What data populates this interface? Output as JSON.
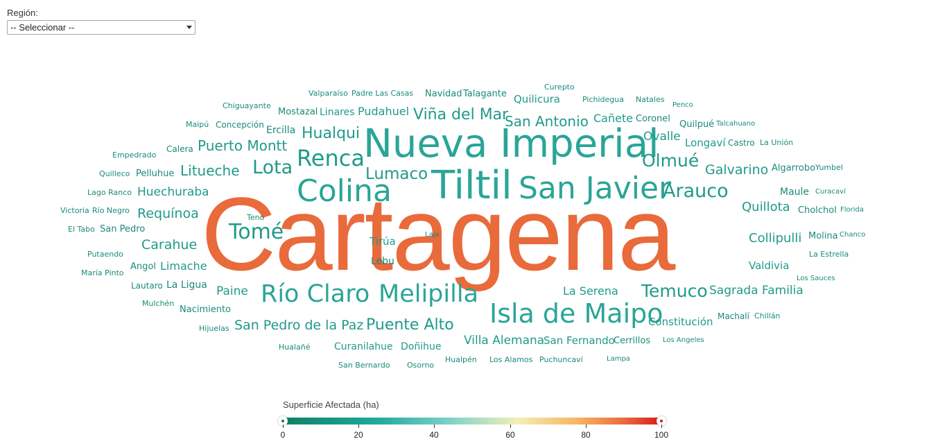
{
  "filter": {
    "label": "Región:",
    "selected": "-- Seleccionar --"
  },
  "legend": {
    "title": "Superficie Afectada (ha)",
    "ticks": [
      "0",
      "20",
      "40",
      "60",
      "80",
      "100"
    ],
    "range": [
      0,
      100
    ],
    "gradient_colors": [
      "#0e8064",
      "#1faa9c",
      "#83d3c9",
      "#f3efb6",
      "#f7b45f",
      "#ec6b3e",
      "#d7191c"
    ]
  },
  "colors": {
    "small_word": "#1a8a79",
    "medium_word": "#1f9a8a",
    "large_word": "#2aa597",
    "highlight_word": "#e96a3b"
  },
  "words": [
    {
      "text": "Cartagena",
      "weight": 100,
      "tier": "highlight"
    },
    {
      "text": "Nueva Imperial",
      "weight": 34,
      "tier": "large"
    },
    {
      "text": "Tiltil",
      "weight": 30,
      "tier": "large"
    },
    {
      "text": "San Javier",
      "weight": 26,
      "tier": "large"
    },
    {
      "text": "Colina",
      "weight": 27,
      "tier": "large"
    },
    {
      "text": "Isla de Maipo",
      "weight": 22,
      "tier": "large"
    },
    {
      "text": "Renca",
      "weight": 18,
      "tier": "medium"
    },
    {
      "text": "Río Claro",
      "weight": 20,
      "tier": "large"
    },
    {
      "text": "Melipilla",
      "weight": 20,
      "tier": "large"
    },
    {
      "text": "Tomé",
      "weight": 17,
      "tier": "medium"
    },
    {
      "text": "Lota",
      "weight": 15,
      "tier": "medium"
    },
    {
      "text": "Arauco",
      "weight": 15,
      "tier": "medium"
    },
    {
      "text": "Olmué",
      "weight": 14,
      "tier": "medium"
    },
    {
      "text": "Temuco",
      "weight": 14,
      "tier": "medium"
    },
    {
      "text": "Lumaco",
      "weight": 13,
      "tier": "medium"
    },
    {
      "text": "Hualqui",
      "weight": 12,
      "tier": "medium"
    },
    {
      "text": "Viña del Mar",
      "weight": 12,
      "tier": "medium"
    },
    {
      "text": "Puente Alto",
      "weight": 13,
      "tier": "medium"
    },
    {
      "text": "San Antonio",
      "weight": 11,
      "tier": "medium"
    },
    {
      "text": "Puerto Montt",
      "weight": 11,
      "tier": "medium"
    },
    {
      "text": "Litueche",
      "weight": 11,
      "tier": "medium"
    },
    {
      "text": "Galvarino",
      "weight": 10,
      "tier": "medium"
    },
    {
      "text": "San Pedro de la Paz",
      "weight": 11,
      "tier": "medium"
    },
    {
      "text": "Requínoa",
      "weight": 10,
      "tier": "medium"
    },
    {
      "text": "Carahue",
      "weight": 10,
      "tier": "medium"
    },
    {
      "text": "Quillota",
      "weight": 10,
      "tier": "medium"
    },
    {
      "text": "Collipulli",
      "weight": 10,
      "tier": "medium"
    },
    {
      "text": "Sagrada Familia",
      "weight": 9,
      "tier": "medium"
    },
    {
      "text": "Ovalle",
      "weight": 9,
      "tier": "medium"
    },
    {
      "text": "Huechuraba",
      "weight": 9,
      "tier": "medium"
    },
    {
      "text": "Villa Alemana",
      "weight": 9,
      "tier": "medium"
    },
    {
      "text": "Paine",
      "weight": 9,
      "tier": "medium"
    },
    {
      "text": "La Serena",
      "weight": 8,
      "tier": "medium"
    },
    {
      "text": "Constitución",
      "weight": 8,
      "tier": "medium"
    },
    {
      "text": "Valdivia",
      "weight": 8,
      "tier": "medium"
    },
    {
      "text": "Limache",
      "weight": 8,
      "tier": "medium"
    },
    {
      "text": "Pudahuel",
      "weight": 8,
      "tier": "medium"
    },
    {
      "text": "Quilicura",
      "weight": 8,
      "tier": "medium"
    },
    {
      "text": "Cañete",
      "weight": 8,
      "tier": "medium"
    },
    {
      "text": "Longaví",
      "weight": 8,
      "tier": "medium"
    },
    {
      "text": "San Fernando",
      "weight": 8,
      "tier": "medium"
    },
    {
      "text": "Tirúa",
      "weight": 8,
      "tier": "medium"
    },
    {
      "text": "Curanilahue",
      "weight": 7,
      "tier": "medium"
    },
    {
      "text": "Doñihue",
      "weight": 7,
      "tier": "medium"
    },
    {
      "text": "Linares",
      "weight": 7,
      "tier": "medium"
    },
    {
      "text": "Maule",
      "weight": 7,
      "tier": "small"
    },
    {
      "text": "La Ligua",
      "weight": 7,
      "tier": "small"
    },
    {
      "text": "Ercilla",
      "weight": 7,
      "tier": "small"
    },
    {
      "text": "Lebu",
      "weight": 7,
      "tier": "small"
    },
    {
      "text": "Nacimiento",
      "weight": 6,
      "tier": "small"
    },
    {
      "text": "Cerrillos",
      "weight": 6,
      "tier": "small"
    },
    {
      "text": "Algarrobo",
      "weight": 6,
      "tier": "small"
    },
    {
      "text": "Mostazal",
      "weight": 6,
      "tier": "small"
    },
    {
      "text": "Cholchol",
      "weight": 6,
      "tier": "small"
    },
    {
      "text": "Molina",
      "weight": 6,
      "tier": "small"
    },
    {
      "text": "Coronel",
      "weight": 6,
      "tier": "small"
    },
    {
      "text": "Quilpué",
      "weight": 6,
      "tier": "small"
    },
    {
      "text": "San Pedro",
      "weight": 6,
      "tier": "small"
    },
    {
      "text": "Pelluhue",
      "weight": 6,
      "tier": "small"
    },
    {
      "text": "Angol",
      "weight": 6,
      "tier": "small"
    },
    {
      "text": "Navidad",
      "weight": 6,
      "tier": "small"
    },
    {
      "text": "Talagante",
      "weight": 6,
      "tier": "small"
    },
    {
      "text": "Concepción",
      "weight": 6,
      "tier": "small"
    },
    {
      "text": "Castro",
      "weight": 5,
      "tier": "small"
    },
    {
      "text": "Machalí",
      "weight": 5,
      "tier": "small"
    },
    {
      "text": "Calera",
      "weight": 5,
      "tier": "small"
    },
    {
      "text": "Lautaro",
      "weight": 5,
      "tier": "small"
    },
    {
      "text": "Hualpén",
      "weight": 5,
      "tier": "small"
    },
    {
      "text": "Los Alamos",
      "weight": 5,
      "tier": "small"
    },
    {
      "text": "Puchuncaví",
      "weight": 5,
      "tier": "small"
    },
    {
      "text": "Osorno",
      "weight": 5,
      "tier": "small"
    },
    {
      "text": "Pichidegua",
      "weight": 5,
      "tier": "small"
    },
    {
      "text": "Natales",
      "weight": 5,
      "tier": "small"
    },
    {
      "text": "Padre Las Casas",
      "weight": 5,
      "tier": "small"
    },
    {
      "text": "Valparaíso",
      "weight": 5,
      "tier": "small"
    },
    {
      "text": "Chiguayante",
      "weight": 5,
      "tier": "small"
    },
    {
      "text": "Maipú",
      "weight": 5,
      "tier": "small"
    },
    {
      "text": "Empedrado",
      "weight": 5,
      "tier": "small"
    },
    {
      "text": "Quilleco",
      "weight": 5,
      "tier": "small"
    },
    {
      "text": "Lago Ranco",
      "weight": 5,
      "tier": "small"
    },
    {
      "text": "Victoria",
      "weight": 5,
      "tier": "small"
    },
    {
      "text": "Río Negro",
      "weight": 5,
      "tier": "small"
    },
    {
      "text": "El Tabo",
      "weight": 5,
      "tier": "small"
    },
    {
      "text": "Teno",
      "weight": 5,
      "tier": "small"
    },
    {
      "text": "Putaendo",
      "weight": 5,
      "tier": "small"
    },
    {
      "text": "María Pinto",
      "weight": 5,
      "tier": "small"
    },
    {
      "text": "Mulchén",
      "weight": 5,
      "tier": "small"
    },
    {
      "text": "Hijuelas",
      "weight": 5,
      "tier": "small"
    },
    {
      "text": "Hualañé",
      "weight": 5,
      "tier": "small"
    },
    {
      "text": "San Bernardo",
      "weight": 5,
      "tier": "small"
    },
    {
      "text": "Curepto",
      "weight": 5,
      "tier": "small"
    },
    {
      "text": "Penco",
      "weight": 4,
      "tier": "small"
    },
    {
      "text": "Talcahuano",
      "weight": 4,
      "tier": "small"
    },
    {
      "text": "La Unión",
      "weight": 4,
      "tier": "small"
    },
    {
      "text": "Yumbel",
      "weight": 4,
      "tier": "small"
    },
    {
      "text": "Curacaví",
      "weight": 4,
      "tier": "small"
    },
    {
      "text": "Florida",
      "weight": 4,
      "tier": "small"
    },
    {
      "text": "Chanco",
      "weight": 4,
      "tier": "small"
    },
    {
      "text": "La Estrella",
      "weight": 4,
      "tier": "small"
    },
    {
      "text": "Los Sauces",
      "weight": 4,
      "tier": "small"
    },
    {
      "text": "Chillán",
      "weight": 4,
      "tier": "small"
    },
    {
      "text": "Los Angeles",
      "weight": 4,
      "tier": "small"
    },
    {
      "text": "Lampa",
      "weight": 4,
      "tier": "small"
    },
    {
      "text": "Laja",
      "weight": 4,
      "tier": "small"
    }
  ]
}
